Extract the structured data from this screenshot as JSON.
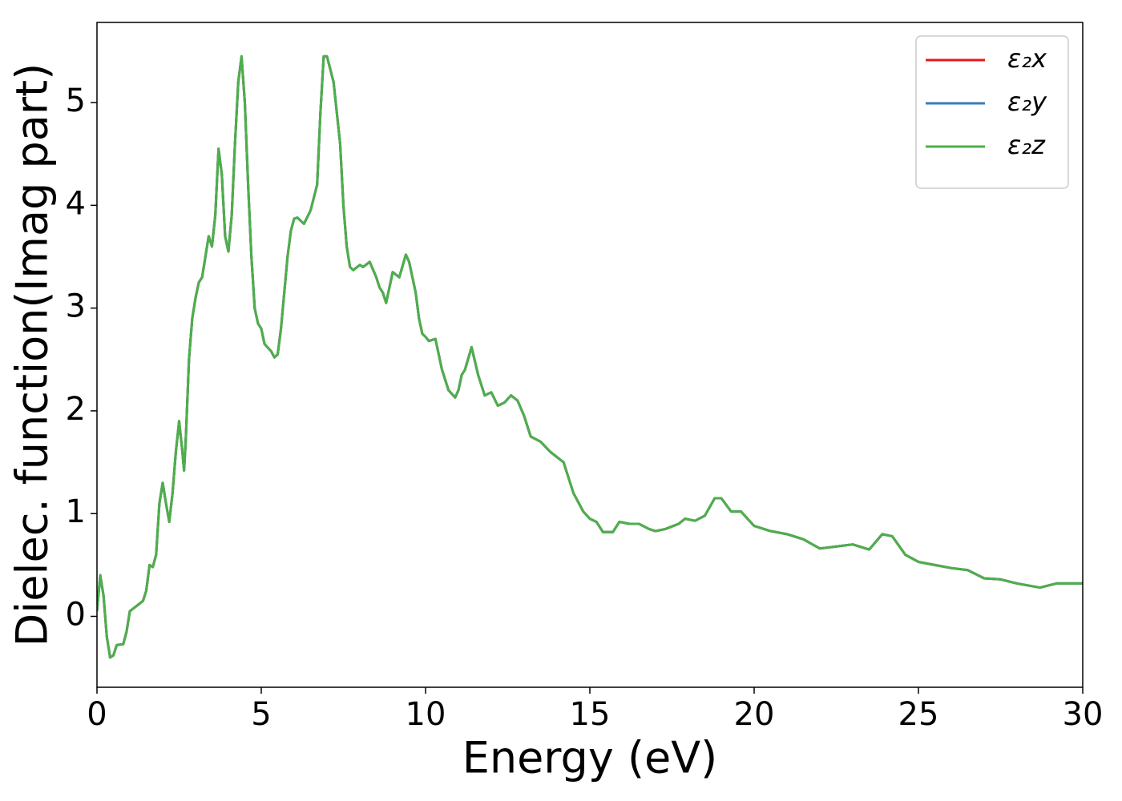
{
  "chart_data": {
    "type": "line",
    "xlabel": "Energy (eV)",
    "ylabel": "Dielec. function(Imag part)",
    "xlim": [
      0,
      30
    ],
    "ylim": [
      -0.69,
      5.78
    ],
    "xticks": [
      0,
      5,
      10,
      15,
      20,
      25,
      30
    ],
    "yticks": [
      0,
      1,
      2,
      3,
      4,
      5
    ],
    "legend": "upper right",
    "grid": false,
    "x": [
      0.0,
      0.1,
      0.2,
      0.3,
      0.4,
      0.5,
      0.6,
      0.8,
      0.9,
      1.0,
      1.2,
      1.4,
      1.5,
      1.6,
      1.7,
      1.8,
      1.9,
      2.0,
      2.1,
      2.2,
      2.3,
      2.4,
      2.5,
      2.6,
      2.65,
      2.7,
      2.8,
      2.9,
      3.0,
      3.1,
      3.2,
      3.3,
      3.4,
      3.5,
      3.6,
      3.7,
      3.8,
      3.9,
      4.0,
      4.1,
      4.2,
      4.3,
      4.4,
      4.5,
      4.6,
      4.7,
      4.8,
      4.9,
      5.0,
      5.1,
      5.3,
      5.4,
      5.5,
      5.6,
      5.7,
      5.8,
      5.9,
      6.0,
      6.1,
      6.3,
      6.5,
      6.7,
      6.8,
      6.9,
      7.0,
      7.2,
      7.4,
      7.5,
      7.6,
      7.7,
      7.8,
      8.0,
      8.1,
      8.3,
      8.5,
      8.6,
      8.7,
      8.8,
      8.9,
      9.0,
      9.2,
      9.4,
      9.5,
      9.7,
      9.8,
      9.9,
      10.0,
      10.1,
      10.3,
      10.5,
      10.7,
      10.9,
      11.0,
      11.1,
      11.2,
      11.4,
      11.6,
      11.7,
      11.8,
      12.0,
      12.2,
      12.4,
      12.6,
      12.8,
      13.0,
      13.2,
      13.5,
      13.8,
      14.0,
      14.2,
      14.5,
      14.8,
      15.0,
      15.2,
      15.4,
      15.7,
      15.9,
      16.2,
      16.5,
      16.8,
      17.0,
      17.3,
      17.7,
      17.9,
      18.2,
      18.5,
      18.8,
      19.0,
      19.3,
      19.6,
      20.0,
      20.5,
      21.0,
      21.5,
      22.0,
      22.5,
      23.0,
      23.5,
      23.9,
      24.2,
      24.6,
      25.0,
      25.5,
      26.0,
      26.5,
      27.0,
      27.5,
      28.0,
      28.7,
      29.2,
      30.0
    ],
    "series": [
      {
        "name": "ε₂x",
        "color": "#e41a1c",
        "values": [
          0.05,
          0.4,
          0.2,
          -0.2,
          -0.4,
          -0.38,
          -0.28,
          -0.27,
          -0.15,
          0.05,
          0.1,
          0.15,
          0.25,
          0.5,
          0.48,
          0.6,
          1.1,
          1.3,
          1.1,
          0.92,
          1.2,
          1.6,
          1.9,
          1.6,
          1.42,
          1.7,
          2.5,
          2.9,
          3.1,
          3.25,
          3.3,
          3.5,
          3.7,
          3.6,
          3.9,
          4.55,
          4.3,
          3.7,
          3.55,
          3.9,
          4.6,
          5.2,
          5.45,
          5.0,
          4.2,
          3.5,
          3.0,
          2.85,
          2.8,
          2.65,
          2.58,
          2.52,
          2.55,
          2.8,
          3.15,
          3.5,
          3.75,
          3.87,
          3.88,
          3.82,
          3.95,
          4.2,
          4.9,
          5.45,
          5.45,
          5.2,
          4.6,
          4.0,
          3.6,
          3.4,
          3.37,
          3.42,
          3.4,
          3.45,
          3.3,
          3.2,
          3.15,
          3.05,
          3.2,
          3.35,
          3.3,
          3.52,
          3.45,
          3.15,
          2.9,
          2.75,
          2.72,
          2.68,
          2.7,
          2.4,
          2.2,
          2.13,
          2.2,
          2.35,
          2.4,
          2.62,
          2.35,
          2.25,
          2.15,
          2.18,
          2.05,
          2.08,
          2.15,
          2.1,
          1.95,
          1.75,
          1.7,
          1.6,
          1.55,
          1.5,
          1.2,
          1.02,
          0.95,
          0.92,
          0.82,
          0.82,
          0.92,
          0.9,
          0.9,
          0.85,
          0.83,
          0.85,
          0.9,
          0.95,
          0.93,
          0.98,
          1.15,
          1.15,
          1.02,
          1.02,
          0.88,
          0.83,
          0.8,
          0.75,
          0.66,
          0.68,
          0.7,
          0.65,
          0.8,
          0.78,
          0.6,
          0.53,
          0.5,
          0.47,
          0.45,
          0.37,
          0.36,
          0.32,
          0.28,
          0.32,
          0.32
        ]
      },
      {
        "name": "ε₂y",
        "color": "#377eb8",
        "values": [
          0.05,
          0.4,
          0.2,
          -0.2,
          -0.4,
          -0.38,
          -0.28,
          -0.27,
          -0.15,
          0.05,
          0.1,
          0.15,
          0.25,
          0.5,
          0.48,
          0.6,
          1.1,
          1.3,
          1.1,
          0.92,
          1.2,
          1.6,
          1.9,
          1.6,
          1.42,
          1.7,
          2.5,
          2.9,
          3.1,
          3.25,
          3.3,
          3.5,
          3.7,
          3.6,
          3.9,
          4.55,
          4.3,
          3.7,
          3.55,
          3.9,
          4.6,
          5.2,
          5.45,
          5.0,
          4.2,
          3.5,
          3.0,
          2.85,
          2.8,
          2.65,
          2.58,
          2.52,
          2.55,
          2.8,
          3.15,
          3.5,
          3.75,
          3.87,
          3.88,
          3.82,
          3.95,
          4.2,
          4.9,
          5.45,
          5.45,
          5.2,
          4.6,
          4.0,
          3.6,
          3.4,
          3.37,
          3.42,
          3.4,
          3.45,
          3.3,
          3.2,
          3.15,
          3.05,
          3.2,
          3.35,
          3.3,
          3.52,
          3.45,
          3.15,
          2.9,
          2.75,
          2.72,
          2.68,
          2.7,
          2.4,
          2.2,
          2.13,
          2.2,
          2.35,
          2.4,
          2.62,
          2.35,
          2.25,
          2.15,
          2.18,
          2.05,
          2.08,
          2.15,
          2.1,
          1.95,
          1.75,
          1.7,
          1.6,
          1.55,
          1.5,
          1.2,
          1.02,
          0.95,
          0.92,
          0.82,
          0.82,
          0.92,
          0.9,
          0.9,
          0.85,
          0.83,
          0.85,
          0.9,
          0.95,
          0.93,
          0.98,
          1.15,
          1.15,
          1.02,
          1.02,
          0.88,
          0.83,
          0.8,
          0.75,
          0.66,
          0.68,
          0.7,
          0.65,
          0.8,
          0.78,
          0.6,
          0.53,
          0.5,
          0.47,
          0.45,
          0.37,
          0.36,
          0.32,
          0.28,
          0.32,
          0.32
        ]
      },
      {
        "name": "ε₂z",
        "color": "#4daf4a",
        "values": [
          0.05,
          0.4,
          0.2,
          -0.2,
          -0.4,
          -0.38,
          -0.28,
          -0.27,
          -0.15,
          0.05,
          0.1,
          0.15,
          0.25,
          0.5,
          0.48,
          0.6,
          1.1,
          1.3,
          1.1,
          0.92,
          1.2,
          1.6,
          1.9,
          1.6,
          1.42,
          1.7,
          2.5,
          2.9,
          3.1,
          3.25,
          3.3,
          3.5,
          3.7,
          3.6,
          3.9,
          4.55,
          4.3,
          3.7,
          3.55,
          3.9,
          4.6,
          5.2,
          5.45,
          5.0,
          4.2,
          3.5,
          3.0,
          2.85,
          2.8,
          2.65,
          2.58,
          2.52,
          2.55,
          2.8,
          3.15,
          3.5,
          3.75,
          3.87,
          3.88,
          3.82,
          3.95,
          4.2,
          4.9,
          5.45,
          5.45,
          5.2,
          4.6,
          4.0,
          3.6,
          3.4,
          3.37,
          3.42,
          3.4,
          3.45,
          3.3,
          3.2,
          3.15,
          3.05,
          3.2,
          3.35,
          3.3,
          3.52,
          3.45,
          3.15,
          2.9,
          2.75,
          2.72,
          2.68,
          2.7,
          2.4,
          2.2,
          2.13,
          2.2,
          2.35,
          2.4,
          2.62,
          2.35,
          2.25,
          2.15,
          2.18,
          2.05,
          2.08,
          2.15,
          2.1,
          1.95,
          1.75,
          1.7,
          1.6,
          1.55,
          1.5,
          1.2,
          1.02,
          0.95,
          0.92,
          0.82,
          0.82,
          0.92,
          0.9,
          0.9,
          0.85,
          0.83,
          0.85,
          0.9,
          0.95,
          0.93,
          0.98,
          1.15,
          1.15,
          1.02,
          1.02,
          0.88,
          0.83,
          0.8,
          0.75,
          0.66,
          0.68,
          0.7,
          0.65,
          0.8,
          0.78,
          0.6,
          0.53,
          0.5,
          0.47,
          0.45,
          0.37,
          0.36,
          0.32,
          0.28,
          0.32,
          0.32
        ]
      }
    ]
  }
}
